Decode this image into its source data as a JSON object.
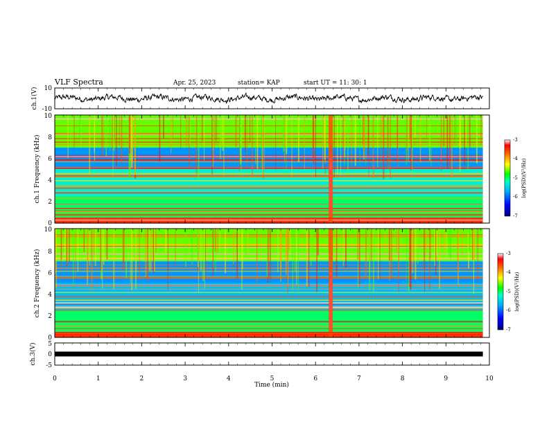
{
  "header": {
    "title": "VLF Spectra",
    "date": "Apr. 25, 2023",
    "station": "station= KAP",
    "start": "start UT =  11: 30: 1"
  },
  "colorbar": {
    "label": "log(PSD)(V²/Hz)",
    "ticks": [
      "-3",
      "-4",
      "-5",
      "-6",
      "-7"
    ],
    "range": [
      -7,
      -3
    ]
  },
  "chart_data": [
    {
      "type": "line",
      "panel": "ch1-waveform",
      "ylabel": "ch.1(V)",
      "ylim": [
        -10,
        10
      ],
      "y_ticks": [
        "10",
        "-10"
      ],
      "x_range_min": [
        0,
        9.85
      ],
      "y_mean_approx": 0,
      "y_amplitude_approx": 3
    },
    {
      "type": "heatmap",
      "panel": "ch1-spectrogram",
      "ylabel": "ch.1 Frequency (kHz)",
      "ylim": [
        0,
        10
      ],
      "y_ticks": [
        "0",
        "2",
        "4",
        "6",
        "8",
        "10"
      ],
      "x_range_min": [
        0,
        9.85
      ],
      "burst_time_min": 6.35,
      "bands": [
        {
          "freq_khz": [
            0,
            0.5
          ],
          "log_psd": -3.5
        },
        {
          "freq_khz": [
            0.5,
            2.5
          ],
          "log_psd": -5.0
        },
        {
          "freq_khz": [
            2.5,
            5.0
          ],
          "log_psd": -5.3
        },
        {
          "freq_khz": [
            5.0,
            7.0
          ],
          "log_psd": -5.8
        },
        {
          "freq_khz": [
            7.0,
            10.0
          ],
          "log_psd": -4.6
        }
      ]
    },
    {
      "type": "heatmap",
      "panel": "ch2-spectrogram",
      "ylabel": "ch.2 Frequency (kHz)",
      "ylim": [
        0,
        10
      ],
      "y_ticks": [
        "0",
        "2",
        "4",
        "6",
        "8",
        "10"
      ],
      "x_range_min": [
        0,
        9.85
      ],
      "burst_time_min": 6.35,
      "bands": [
        {
          "freq_khz": [
            0,
            0.5
          ],
          "log_psd": -3.5
        },
        {
          "freq_khz": [
            0.5,
            2.5
          ],
          "log_psd": -5.0
        },
        {
          "freq_khz": [
            2.5,
            5.0
          ],
          "log_psd": -5.6
        },
        {
          "freq_khz": [
            5.0,
            7.0
          ],
          "log_psd": -5.8
        },
        {
          "freq_khz": [
            7.0,
            10.0
          ],
          "log_psd": -4.6
        }
      ]
    },
    {
      "type": "line",
      "panel": "ch3-waveform",
      "ylabel": "ch.3(V)",
      "ylim": [
        -5,
        5
      ],
      "y_ticks": [
        "5",
        "0",
        "-5"
      ],
      "x_range_min": [
        0,
        9.85
      ],
      "y_level": 0,
      "xlabel": "Time (min)",
      "x_ticks": [
        "0",
        "1",
        "2",
        "3",
        "4",
        "5",
        "6",
        "7",
        "8",
        "9",
        "10"
      ],
      "xlim": [
        0,
        10
      ]
    }
  ]
}
